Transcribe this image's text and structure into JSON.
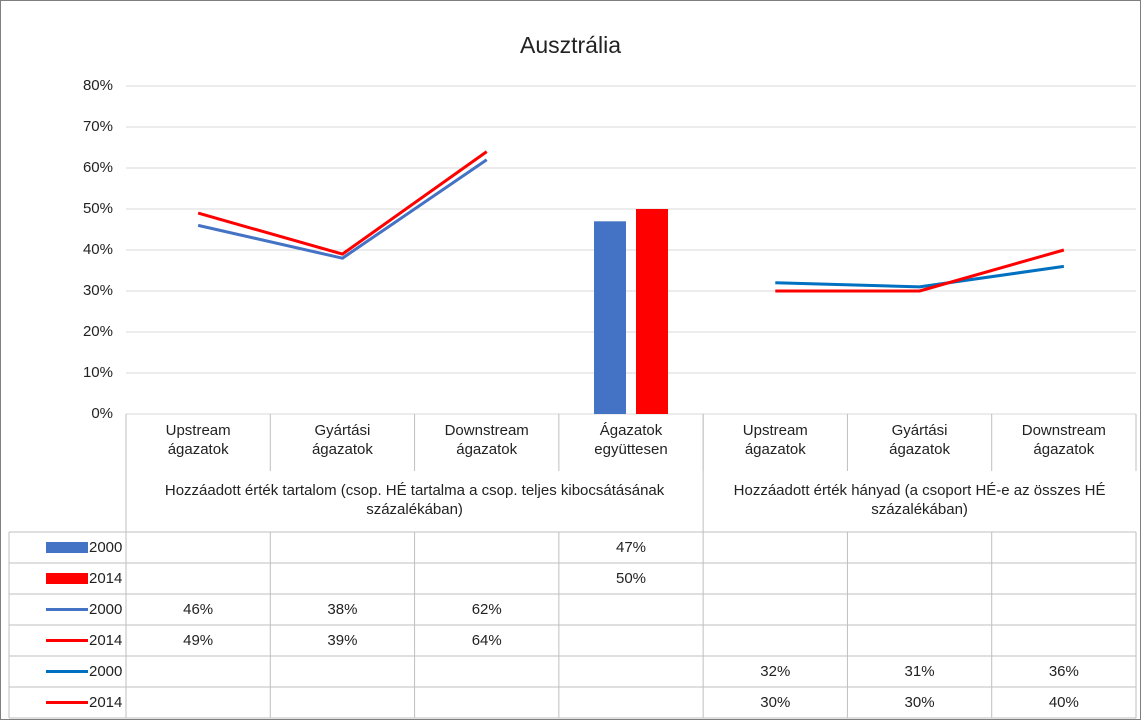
{
  "chart_data": {
    "type": "combo",
    "title": "Ausztrália",
    "categories": [
      "Upstream ágazatok",
      "Gyártási ágazatok",
      "Downstream ágazatok",
      "Ágazatok együttesen",
      "Upstream ágazatok",
      "Gyártási ágazatok",
      "Downstream ágazatok"
    ],
    "groups": [
      "Hozzáadott érték tartalom (csop. HÉ tartalma a csop. teljes kibocsátásának százalékában)",
      "Hozzáadott érték hányad (a csoport HÉ-e az összes HÉ százalékában)"
    ],
    "series": [
      {
        "name": "2000",
        "type": "bar",
        "color": "#4472c4",
        "values": [
          null,
          null,
          null,
          47,
          null,
          null,
          null
        ],
        "value_labels": [
          null,
          null,
          null,
          "47%",
          null,
          null,
          null
        ]
      },
      {
        "name": "2014",
        "type": "bar",
        "color": "#ff0000",
        "values": [
          null,
          null,
          null,
          50,
          null,
          null,
          null
        ],
        "value_labels": [
          null,
          null,
          null,
          "50%",
          null,
          null,
          null
        ]
      },
      {
        "name": "2000",
        "type": "line",
        "color": "#4472c4",
        "values": [
          46,
          38,
          62,
          null,
          null,
          null,
          null
        ],
        "value_labels": [
          "46%",
          "38%",
          "62%",
          null,
          null,
          null,
          null
        ]
      },
      {
        "name": "2014",
        "type": "line",
        "color": "#ff0000",
        "values": [
          49,
          39,
          64,
          null,
          null,
          null,
          null
        ],
        "value_labels": [
          "49%",
          "39%",
          "64%",
          null,
          null,
          null,
          null
        ]
      },
      {
        "name": "2000",
        "type": "line",
        "color": "#0070c0",
        "values": [
          null,
          null,
          null,
          null,
          32,
          31,
          36
        ],
        "value_labels": [
          null,
          null,
          null,
          null,
          "32%",
          "31%",
          "36%"
        ]
      },
      {
        "name": "2014",
        "type": "line",
        "color": "#ff0000",
        "values": [
          null,
          null,
          null,
          null,
          30,
          30,
          40
        ],
        "value_labels": [
          null,
          null,
          null,
          null,
          "30%",
          "30%",
          "40%"
        ]
      }
    ],
    "ylim": [
      0,
      80
    ],
    "yticks": [
      {
        "value": 0,
        "label": "0%"
      },
      {
        "value": 10,
        "label": "10%"
      },
      {
        "value": 20,
        "label": "20%"
      },
      {
        "value": 30,
        "label": "30%"
      },
      {
        "value": 40,
        "label": "40%"
      },
      {
        "value": 50,
        "label": "50%"
      },
      {
        "value": 60,
        "label": "60%"
      },
      {
        "value": 70,
        "label": "70%"
      },
      {
        "value": 80,
        "label": "80%"
      }
    ],
    "grid": true
  }
}
